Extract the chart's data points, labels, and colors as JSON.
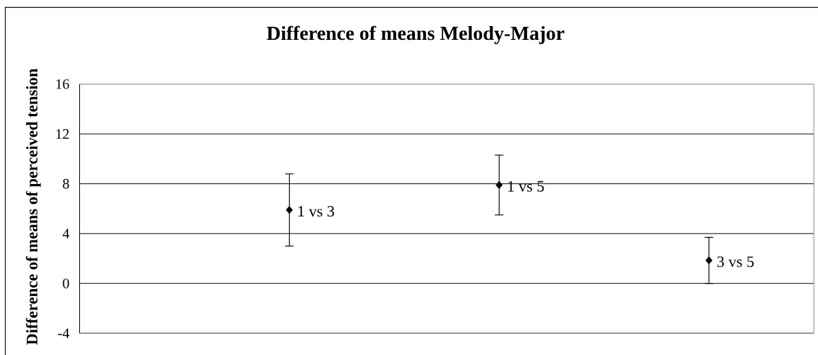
{
  "chart_data": {
    "type": "scatter",
    "title": "Difference of means Melody-Major",
    "ylabel": "Difference of means of perceived tension",
    "categories": [
      null,
      null,
      null
    ],
    "values": [
      5.9,
      7.9,
      1.85
    ],
    "errors": [
      2.9,
      2.4,
      1.85
    ],
    "value_labels": [
      "1 vs 3",
      "1 vs 5",
      "3 vs 5"
    ],
    "color": "#000000",
    "marker": "diamond",
    "ylim": [
      -4,
      16
    ],
    "yticks": [
      -4,
      0,
      4,
      8,
      12,
      16
    ],
    "grid": "y",
    "tick_labels": "y"
  }
}
